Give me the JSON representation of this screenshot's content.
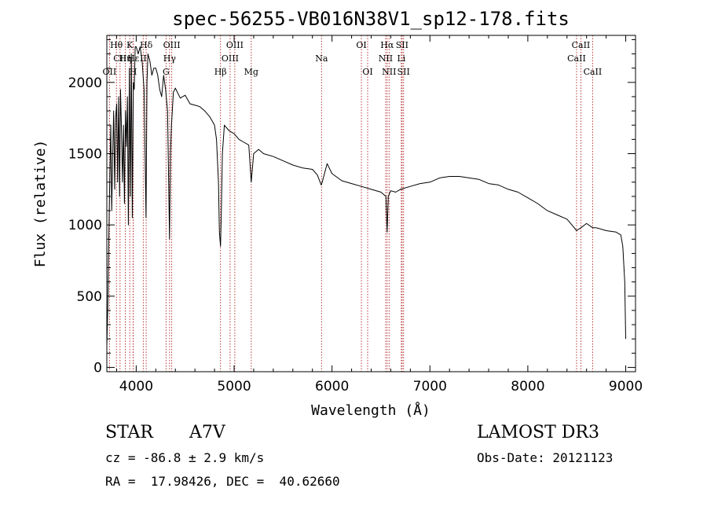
{
  "chart_data": {
    "type": "line",
    "title": "spec-56255-VB016N38V1_sp12-178.fits",
    "xlabel": "Wavelength (Å)",
    "ylabel": "Flux (relative)",
    "xlim": [
      3700,
      9100
    ],
    "ylim": [
      -30,
      2330
    ],
    "xticks": [
      4000,
      5000,
      6000,
      7000,
      8000,
      9000
    ],
    "yticks": [
      0,
      500,
      1000,
      1500,
      2000
    ],
    "grid": false,
    "line_color": "#000000",
    "marker_color": "#b22222",
    "series": [
      {
        "name": "flux",
        "x": [
          3700,
          3710,
          3720,
          3730,
          3740,
          3750,
          3760,
          3770,
          3780,
          3790,
          3800,
          3810,
          3820,
          3830,
          3840,
          3850,
          3860,
          3870,
          3880,
          3890,
          3900,
          3910,
          3920,
          3930,
          3940,
          3950,
          3960,
          3970,
          3980,
          3990,
          4000,
          4020,
          4040,
          4060,
          4080,
          4100,
          4110,
          4120,
          4140,
          4160,
          4180,
          4200,
          4220,
          4240,
          4260,
          4280,
          4300,
          4320,
          4340,
          4350,
          4360,
          4380,
          4400,
          4450,
          4500,
          4550,
          4600,
          4650,
          4700,
          4750,
          4800,
          4820,
          4840,
          4850,
          4861,
          4870,
          4880,
          4900,
          4950,
          5000,
          5050,
          5100,
          5150,
          5175,
          5200,
          5250,
          5300,
          5400,
          5500,
          5600,
          5700,
          5800,
          5850,
          5890,
          5900,
          5950,
          6000,
          6100,
          6200,
          6300,
          6400,
          6500,
          6550,
          6563,
          6575,
          6600,
          6650,
          6700,
          6800,
          6900,
          7000,
          7100,
          7200,
          7300,
          7400,
          7500,
          7600,
          7700,
          7800,
          7900,
          8000,
          8100,
          8200,
          8300,
          8400,
          8450,
          8498,
          8542,
          8600,
          8662,
          8700,
          8800,
          8900,
          8950,
          8970,
          8990,
          9000
        ],
        "y": [
          150,
          420,
          900,
          1300,
          1700,
          1100,
          1500,
          1800,
          1250,
          1750,
          1850,
          1300,
          1900,
          1200,
          1950,
          1650,
          1300,
          1700,
          1150,
          1800,
          1550,
          1900,
          1000,
          2100,
          1200,
          2200,
          1050,
          2000,
          1950,
          2250,
          2250,
          2200,
          2250,
          2150,
          1950,
          1050,
          2000,
          2200,
          2150,
          2050,
          2100,
          2100,
          2050,
          1950,
          1900,
          2050,
          1950,
          1800,
          900,
          1500,
          1700,
          1930,
          1960,
          1890,
          1910,
          1850,
          1840,
          1830,
          1800,
          1760,
          1700,
          1600,
          1300,
          950,
          850,
          1100,
          1500,
          1700,
          1660,
          1640,
          1600,
          1580,
          1560,
          1300,
          1500,
          1530,
          1500,
          1480,
          1450,
          1420,
          1400,
          1390,
          1350,
          1280,
          1300,
          1430,
          1360,
          1310,
          1290,
          1270,
          1250,
          1230,
          1200,
          950,
          1200,
          1240,
          1230,
          1250,
          1270,
          1290,
          1300,
          1330,
          1340,
          1340,
          1330,
          1320,
          1290,
          1280,
          1250,
          1230,
          1190,
          1150,
          1100,
          1070,
          1040,
          1000,
          960,
          980,
          1010,
          980,
          980,
          960,
          950,
          930,
          850,
          600,
          200
        ]
      }
    ],
    "lines": [
      {
        "label": "OII",
        "x": 3727,
        "row": 3
      },
      {
        "label": "Hθ",
        "x": 3798,
        "row": 1
      },
      {
        "label": "CII",
        "x": 3835,
        "row": 2
      },
      {
        "label": "Hη",
        "x": 3889,
        "row": 2
      },
      {
        "label": "K",
        "x": 3934,
        "row": 1
      },
      {
        "label": "H",
        "x": 3969,
        "row": 3
      },
      {
        "label": "Hε",
        "x": 3970,
        "row": 2
      },
      {
        "label": "Hδ",
        "x": 4102,
        "row": 1
      },
      {
        "label": "II",
        "x": 4072,
        "row": 2
      },
      {
        "label": "OIII",
        "x": 4363,
        "row": 1
      },
      {
        "label": "Hγ",
        "x": 4341,
        "row": 2
      },
      {
        "label": "G",
        "x": 4305,
        "row": 3
      },
      {
        "label": "Hβ",
        "x": 4861,
        "row": 3
      },
      {
        "label": "OIII",
        "x": 4959,
        "row": 2
      },
      {
        "label": "OIII",
        "x": 5007,
        "row": 1
      },
      {
        "label": "Mg",
        "x": 5175,
        "row": 3
      },
      {
        "label": "Na",
        "x": 5893,
        "row": 2
      },
      {
        "label": "OI",
        "x": 6300,
        "row": 1
      },
      {
        "label": "OI",
        "x": 6364,
        "row": 3
      },
      {
        "label": "NII",
        "x": 6548,
        "row": 2
      },
      {
        "label": "Hα",
        "x": 6563,
        "row": 1
      },
      {
        "label": "NII",
        "x": 6583,
        "row": 3
      },
      {
        "label": "Li",
        "x": 6708,
        "row": 2
      },
      {
        "label": "SII",
        "x": 6716,
        "row": 1
      },
      {
        "label": "SII",
        "x": 6731,
        "row": 3
      },
      {
        "label": "CaII",
        "x": 8498,
        "row": 2
      },
      {
        "label": "CaII",
        "x": 8542,
        "row": 1
      },
      {
        "label": "CaII",
        "x": 8662,
        "row": 3
      }
    ]
  },
  "footer": {
    "star_label": "STAR",
    "spectral_class": "A7V",
    "survey": "LAMOST DR3",
    "cz": "cz = -86.8 ± 2.9 km/s",
    "obs_date": "Obs-Date: 20121123",
    "coords": "RA =  17.98426, DEC =  40.62660"
  }
}
